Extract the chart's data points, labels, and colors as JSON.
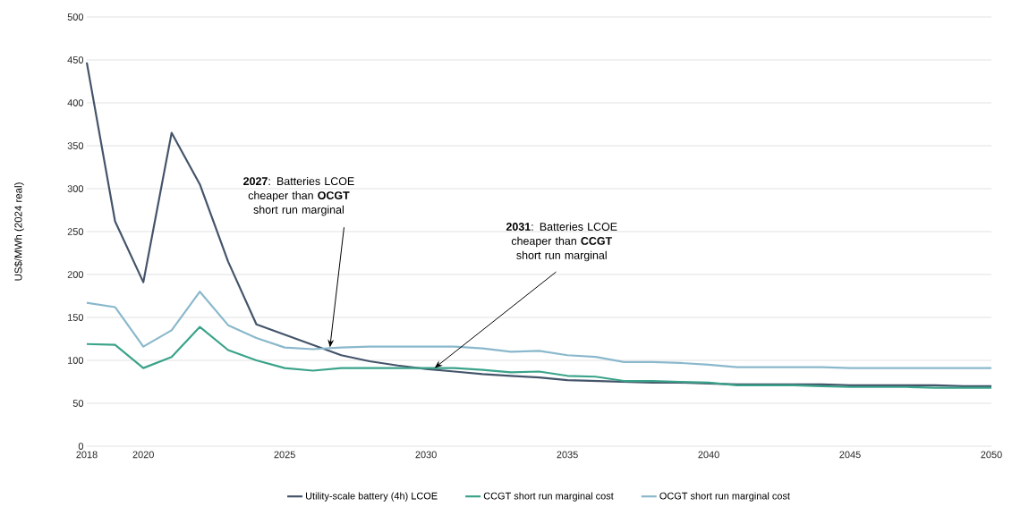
{
  "chart_data": {
    "type": "line",
    "ylabel": "US$/MWh (2024 real)",
    "x": [
      2018,
      2019,
      2020,
      2021,
      2022,
      2023,
      2024,
      2025,
      2026,
      2027,
      2028,
      2029,
      2030,
      2031,
      2032,
      2033,
      2034,
      2035,
      2036,
      2037,
      2038,
      2039,
      2040,
      2041,
      2042,
      2043,
      2044,
      2045,
      2046,
      2047,
      2048,
      2049,
      2050
    ],
    "series": [
      {
        "name": "Utility-scale battery (4h) LCOE",
        "color": "#44546a",
        "values": [
          447,
          262,
          191,
          365,
          305,
          215,
          142,
          130,
          118,
          106,
          99,
          94,
          90,
          87,
          84,
          82,
          80,
          77,
          76,
          75,
          74,
          74,
          73,
          72,
          72,
          72,
          72,
          71,
          71,
          71,
          71,
          70,
          70
        ]
      },
      {
        "name": "CCGT short run marginal cost",
        "color": "#3aa38a",
        "values": [
          119,
          118,
          91,
          104,
          139,
          112,
          100,
          91,
          88,
          91,
          91,
          91,
          91,
          91,
          89,
          86,
          87,
          82,
          81,
          76,
          76,
          75,
          74,
          71,
          71,
          71,
          70,
          69,
          69,
          69,
          68,
          68,
          68
        ]
      },
      {
        "name": "OCGT short run marginal cost",
        "color": "#8ab8cc",
        "values": [
          167,
          162,
          116,
          135,
          180,
          141,
          126,
          115,
          113,
          115,
          116,
          116,
          116,
          116,
          114,
          110,
          111,
          106,
          104,
          98,
          98,
          97,
          95,
          92,
          92,
          92,
          92,
          91,
          91,
          91,
          91,
          91,
          91
        ]
      }
    ],
    "xlim": [
      2018,
      2050
    ],
    "xticks": [
      2018,
      2020,
      2025,
      2030,
      2035,
      2040,
      2045,
      2050
    ],
    "ylim": [
      0,
      500
    ],
    "yticks": [
      0,
      50,
      100,
      150,
      200,
      250,
      300,
      350,
      400,
      450,
      500
    ],
    "grid": "y",
    "legend": "bottom",
    "marker": "none",
    "line_style": "solid",
    "annotations": [
      {
        "text": "**2027**: Batteries LCOE cheaper than **OCGT** short run marginal",
        "x": 2026.6,
        "y": 115
      },
      {
        "text": "**2031**: Batteries LCOE cheaper than **CCGT** short run marginal",
        "x": 2030.3,
        "y": 91
      }
    ]
  }
}
